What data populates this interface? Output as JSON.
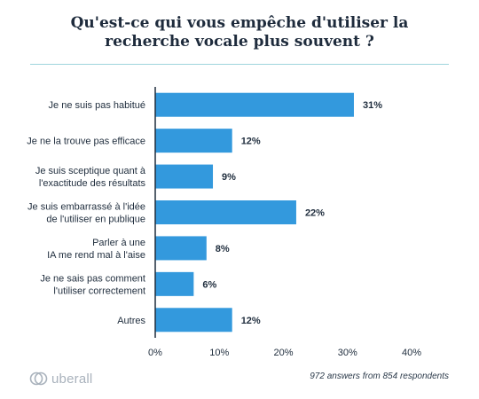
{
  "title": {
    "line1": "Qu'est-ce qui vous empêche d'utiliser la",
    "line2": "recherche vocale plus souvent ?"
  },
  "chart_data": {
    "type": "bar",
    "orientation": "horizontal",
    "categories": [
      [
        "Je ne suis pas habitué"
      ],
      [
        "Je ne la trouve pas efficace"
      ],
      [
        "Je suis sceptique quant à",
        "l'exactitude des résultats"
      ],
      [
        "Je suis embarrassé à l'idée",
        "de l'utiliser en publique"
      ],
      [
        "Parler à une",
        "IA me rend mal à l'aise"
      ],
      [
        "Je ne sais pas comment",
        "l'utiliser correctement"
      ],
      [
        "Autres"
      ]
    ],
    "values": [
      31,
      12,
      9,
      22,
      8,
      6,
      12
    ],
    "value_labels": [
      "31%",
      "12%",
      "9%",
      "22%",
      "8%",
      "6%",
      "12%"
    ],
    "xticks": [
      "0%",
      "10%",
      "20%",
      "30%",
      "40%"
    ],
    "xlim": [
      0,
      40
    ],
    "bar_color": "#3399dd",
    "grid": false,
    "legend": "none"
  },
  "footer": {
    "brand": "uberall",
    "source": "972 answers from 854 respondents"
  },
  "colors": {
    "title": "#1e2b3c",
    "divider": "#9fd4dc",
    "brand": "#a9b2bc"
  }
}
